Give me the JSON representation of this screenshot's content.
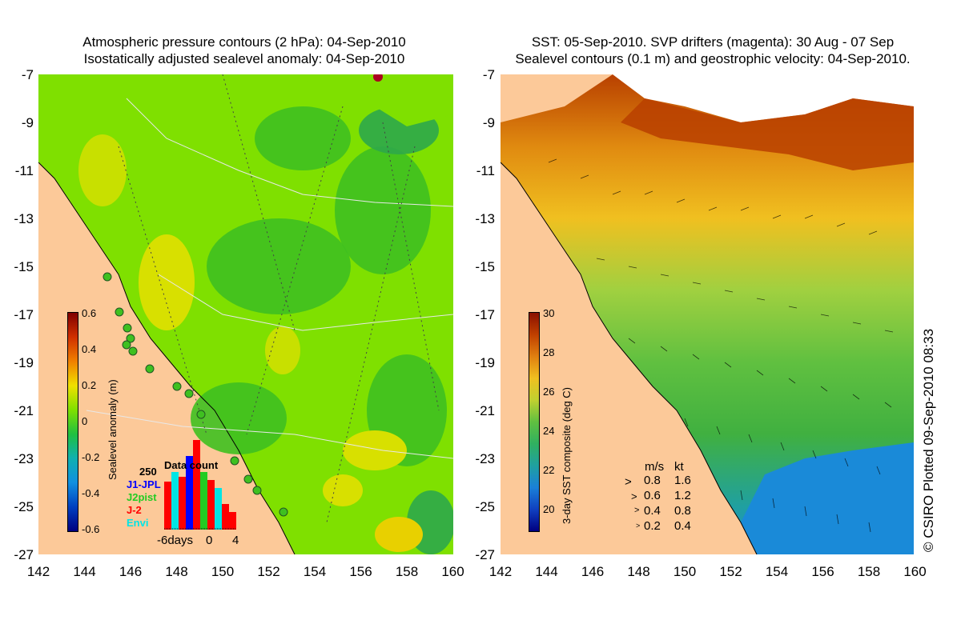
{
  "left_panel": {
    "title_line1": "Atmospheric pressure contours (2 hPa): 04-Sep-2010",
    "title_line2": "Isostatically adjusted sealevel anomaly: 04-Sep-2010",
    "colorbar": {
      "title": "Sealevel anomaly (m)",
      "ticks": [
        "0.6",
        "0.4",
        "0.2",
        "0",
        "-0.2",
        "-0.4",
        "-0.6"
      ]
    },
    "histogram": {
      "title": "Data count",
      "max_label": "250",
      "series": [
        {
          "name": "J1-JPL",
          "color": "#0000ff"
        },
        {
          "name": "J2pist",
          "color": "#22cc22"
        },
        {
          "name": "J-2",
          "color": "#ff0000"
        },
        {
          "name": "Envi",
          "color": "#00e5e5"
        }
      ],
      "x_ticks": [
        "-6days",
        "0",
        "4"
      ]
    }
  },
  "right_panel": {
    "title_line1": "SST: 05-Sep-2010. SVP drifters (magenta): 30 Aug - 07 Sep",
    "title_line2": "Sealevel contours (0.1 m) and geostrophic velocity: 04-Sep-2010.",
    "colorbar": {
      "title": "3-day SST composite (deg C)",
      "ticks": [
        "30",
        "28",
        "26",
        "24",
        "22",
        "20"
      ]
    },
    "vector_legend": {
      "header_ms": "m/s",
      "header_kt": "kt",
      "rows": [
        {
          "ms": "0.8",
          "kt": "1.6"
        },
        {
          "ms": "0.6",
          "kt": "1.2"
        },
        {
          "ms": "0.4",
          "kt": "0.8"
        },
        {
          "ms": "0.2",
          "kt": "0.4"
        }
      ]
    }
  },
  "axes": {
    "y_labels": [
      "-7",
      "-9",
      "-11",
      "-13",
      "-15",
      "-17",
      "-19",
      "-21",
      "-23",
      "-25",
      "-27"
    ],
    "x_labels": [
      "142",
      "144",
      "146",
      "148",
      "150",
      "152",
      "154",
      "156",
      "158",
      "160"
    ]
  },
  "credit": "© CSIRO Plotted 09-Sep-2010 08:33",
  "colors": {
    "land": "#fcc999",
    "ocean_green": "#7fe000",
    "ocean_dark": "#3fc020",
    "sst_orange": "#f0a020",
    "sst_green": "#40c040",
    "sst_blue": "#1a8ad8"
  }
}
